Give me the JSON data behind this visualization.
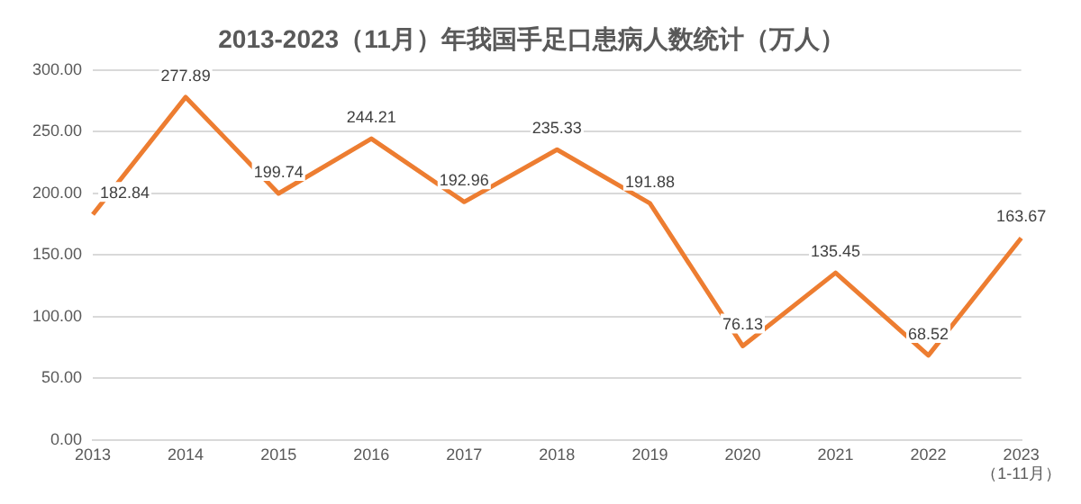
{
  "chart_data": {
    "type": "line",
    "title": "2013-2023（11月）年我国手足口患病人数统计（万人）",
    "categories": [
      "2013",
      "2014",
      "2015",
      "2016",
      "2017",
      "2018",
      "2019",
      "2020",
      "2021",
      "2022",
      "2023\n（1-11月）"
    ],
    "series": [
      {
        "color": "#ed7d31",
        "values": [
          182.84,
          277.89,
          199.74,
          244.21,
          192.96,
          235.33,
          191.88,
          76.13,
          135.45,
          68.52,
          163.67
        ]
      }
    ],
    "ylim": [
      0,
      300
    ],
    "yticks": [
      {
        "value": 0,
        "label": "0.00"
      },
      {
        "value": 50,
        "label": "50.00"
      },
      {
        "value": 100,
        "label": "100.00"
      },
      {
        "value": 150,
        "label": "150.00"
      },
      {
        "value": 200,
        "label": "200.00"
      },
      {
        "value": 250,
        "label": "250.00"
      },
      {
        "value": 300,
        "label": "300.00"
      }
    ],
    "grid": "y",
    "legend": false,
    "marker": "none",
    "line_style": "solid",
    "data_labels": true
  }
}
